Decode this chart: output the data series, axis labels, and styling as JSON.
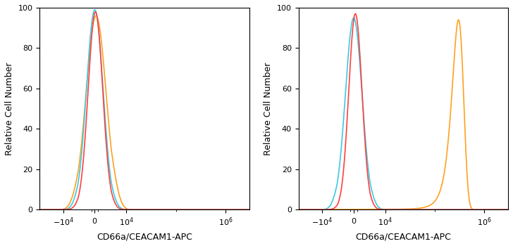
{
  "colors": {
    "blue": "#3EC9E0",
    "red": "#FF4040",
    "orange": "#FFA020"
  },
  "left_panel": {
    "blue": {
      "mu": 0,
      "sigma": 2500,
      "peak": 99,
      "asymmetry": 1.0
    },
    "red": {
      "mu": 200,
      "sigma": 2200,
      "peak": 98,
      "asymmetry": 1.0
    },
    "orange": {
      "mu": 400,
      "sigma": 3000,
      "peak": 96,
      "asymmetry": 1.0
    }
  },
  "right_panel": {
    "blue": {
      "mu": 0,
      "sigma": 2500,
      "peak": 95,
      "asymmetry": 1.0
    },
    "red": {
      "mu": 500,
      "sigma": 2000,
      "peak": 97,
      "asymmetry": 1.0
    },
    "orange": {
      "mu": 300000,
      "sigma": 80000,
      "peak": 94,
      "asymmetry": 1.0
    }
  },
  "xlabel": "CD66a/CEACAM1-APC",
  "ylabel": "Relative Cell Number",
  "ylim": [
    0,
    100
  ],
  "yticks": [
    0,
    20,
    40,
    60,
    80,
    100
  ],
  "xmin": -30000,
  "xmax": 3000000,
  "linthresh": 5000,
  "linscale": 0.3
}
